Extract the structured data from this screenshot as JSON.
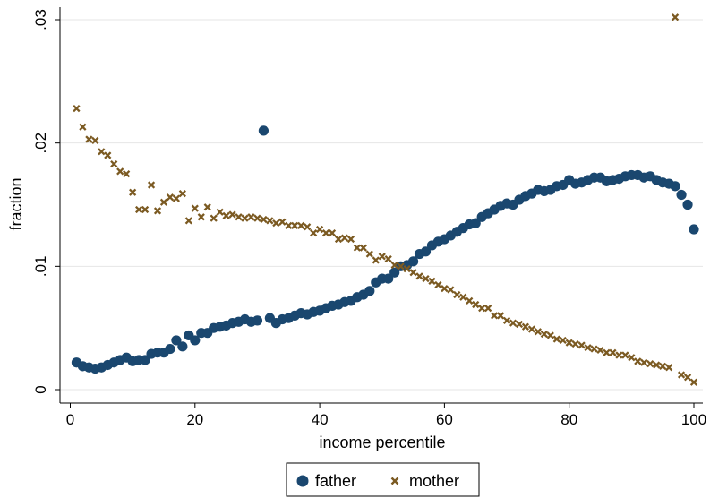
{
  "chart_data": {
    "type": "scatter",
    "title": "",
    "xlabel": "income percentile",
    "ylabel": "fraction",
    "xlim": [
      0,
      100
    ],
    "ylim": [
      0,
      0.03
    ],
    "xticks": [
      0,
      20,
      40,
      60,
      80,
      100
    ],
    "xtick_labels": [
      "0",
      "20",
      "40",
      "60",
      "80",
      "100"
    ],
    "yticks": [
      0,
      0.01,
      0.02,
      0.03
    ],
    "ytick_labels": [
      "0",
      ".01",
      ".02",
      ".03"
    ],
    "grid": "horizontal",
    "legend_position": "bottom",
    "series": [
      {
        "name": "father",
        "marker": "circle",
        "color": "#1a476f",
        "x": [
          1,
          2,
          3,
          4,
          5,
          6,
          7,
          8,
          9,
          10,
          11,
          12,
          13,
          14,
          15,
          16,
          17,
          18,
          19,
          20,
          21,
          22,
          23,
          24,
          25,
          26,
          27,
          28,
          29,
          30,
          31,
          32,
          33,
          34,
          35,
          36,
          37,
          38,
          39,
          40,
          41,
          42,
          43,
          44,
          45,
          46,
          47,
          48,
          49,
          50,
          51,
          52,
          53,
          54,
          55,
          56,
          57,
          58,
          59,
          60,
          61,
          62,
          63,
          64,
          65,
          66,
          67,
          68,
          69,
          70,
          71,
          72,
          73,
          74,
          75,
          76,
          77,
          78,
          79,
          80,
          81,
          82,
          83,
          84,
          85,
          86,
          87,
          88,
          89,
          90,
          91,
          92,
          93,
          94,
          95,
          96,
          97,
          98,
          99,
          100
        ],
        "y": [
          0.0022,
          0.0019,
          0.0018,
          0.0017,
          0.0018,
          0.002,
          0.0022,
          0.0024,
          0.0026,
          0.0023,
          0.0024,
          0.0024,
          0.0029,
          0.003,
          0.003,
          0.0033,
          0.004,
          0.0035,
          0.0044,
          0.004,
          0.0046,
          0.0046,
          0.005,
          0.0051,
          0.0052,
          0.0054,
          0.0055,
          0.0057,
          0.0055,
          0.0056,
          0.021,
          0.0058,
          0.0054,
          0.0057,
          0.0058,
          0.006,
          0.0062,
          0.0061,
          0.0063,
          0.0064,
          0.0066,
          0.0068,
          0.0069,
          0.0071,
          0.0072,
          0.0075,
          0.0077,
          0.008,
          0.0087,
          0.009,
          0.009,
          0.0095,
          0.01,
          0.0101,
          0.0104,
          0.011,
          0.0112,
          0.0117,
          0.012,
          0.0122,
          0.0125,
          0.0128,
          0.0131,
          0.0134,
          0.0135,
          0.014,
          0.0143,
          0.0146,
          0.0149,
          0.0151,
          0.015,
          0.0154,
          0.0157,
          0.0159,
          0.0162,
          0.0161,
          0.0162,
          0.0165,
          0.0166,
          0.017,
          0.0167,
          0.0168,
          0.017,
          0.0172,
          0.0172,
          0.0169,
          0.017,
          0.0171,
          0.0173,
          0.0174,
          0.0174,
          0.0172,
          0.0173,
          0.017,
          0.0168,
          0.0167,
          0.0165,
          0.0158,
          0.015,
          0.013
        ]
      },
      {
        "name": "mother",
        "marker": "x",
        "color": "#7b5a22",
        "x": [
          1,
          2,
          3,
          4,
          5,
          6,
          7,
          8,
          9,
          10,
          11,
          12,
          13,
          14,
          15,
          16,
          17,
          18,
          19,
          20,
          21,
          22,
          23,
          24,
          25,
          26,
          27,
          28,
          29,
          30,
          31,
          32,
          33,
          34,
          35,
          36,
          37,
          38,
          39,
          40,
          41,
          42,
          43,
          44,
          45,
          46,
          47,
          48,
          49,
          50,
          51,
          52,
          53,
          54,
          55,
          56,
          57,
          58,
          59,
          60,
          61,
          62,
          63,
          64,
          65,
          66,
          67,
          68,
          69,
          70,
          71,
          72,
          73,
          74,
          75,
          76,
          77,
          78,
          79,
          80,
          81,
          82,
          83,
          84,
          85,
          86,
          87,
          88,
          89,
          90,
          91,
          92,
          93,
          94,
          95,
          96,
          97,
          98,
          99,
          100
        ],
        "y": [
          0.0228,
          0.0213,
          0.0203,
          0.0202,
          0.0193,
          0.019,
          0.0183,
          0.0177,
          0.0175,
          0.016,
          0.0146,
          0.0146,
          0.0166,
          0.0145,
          0.0152,
          0.0156,
          0.0155,
          0.0159,
          0.0137,
          0.0147,
          0.014,
          0.0148,
          0.0139,
          0.0144,
          0.0141,
          0.0142,
          0.014,
          0.0139,
          0.014,
          0.0139,
          0.0138,
          0.0137,
          0.0135,
          0.0136,
          0.0133,
          0.0133,
          0.0133,
          0.0132,
          0.0127,
          0.013,
          0.0127,
          0.0127,
          0.0122,
          0.0123,
          0.0122,
          0.0115,
          0.0115,
          0.011,
          0.0105,
          0.0108,
          0.0106,
          0.0101,
          0.01,
          0.0098,
          0.0095,
          0.0092,
          0.009,
          0.0088,
          0.0085,
          0.0082,
          0.0081,
          0.0077,
          0.0075,
          0.0072,
          0.0069,
          0.0066,
          0.0066,
          0.006,
          0.006,
          0.0056,
          0.0054,
          0.0053,
          0.0051,
          0.0049,
          0.0047,
          0.0045,
          0.0044,
          0.0041,
          0.004,
          0.0038,
          0.0037,
          0.0036,
          0.0034,
          0.0033,
          0.0032,
          0.003,
          0.003,
          0.0028,
          0.0028,
          0.0026,
          0.0023,
          0.0022,
          0.0021,
          0.002,
          0.0019,
          0.0018,
          0.0302,
          0.0012,
          0.001,
          0.0006
        ]
      }
    ]
  }
}
